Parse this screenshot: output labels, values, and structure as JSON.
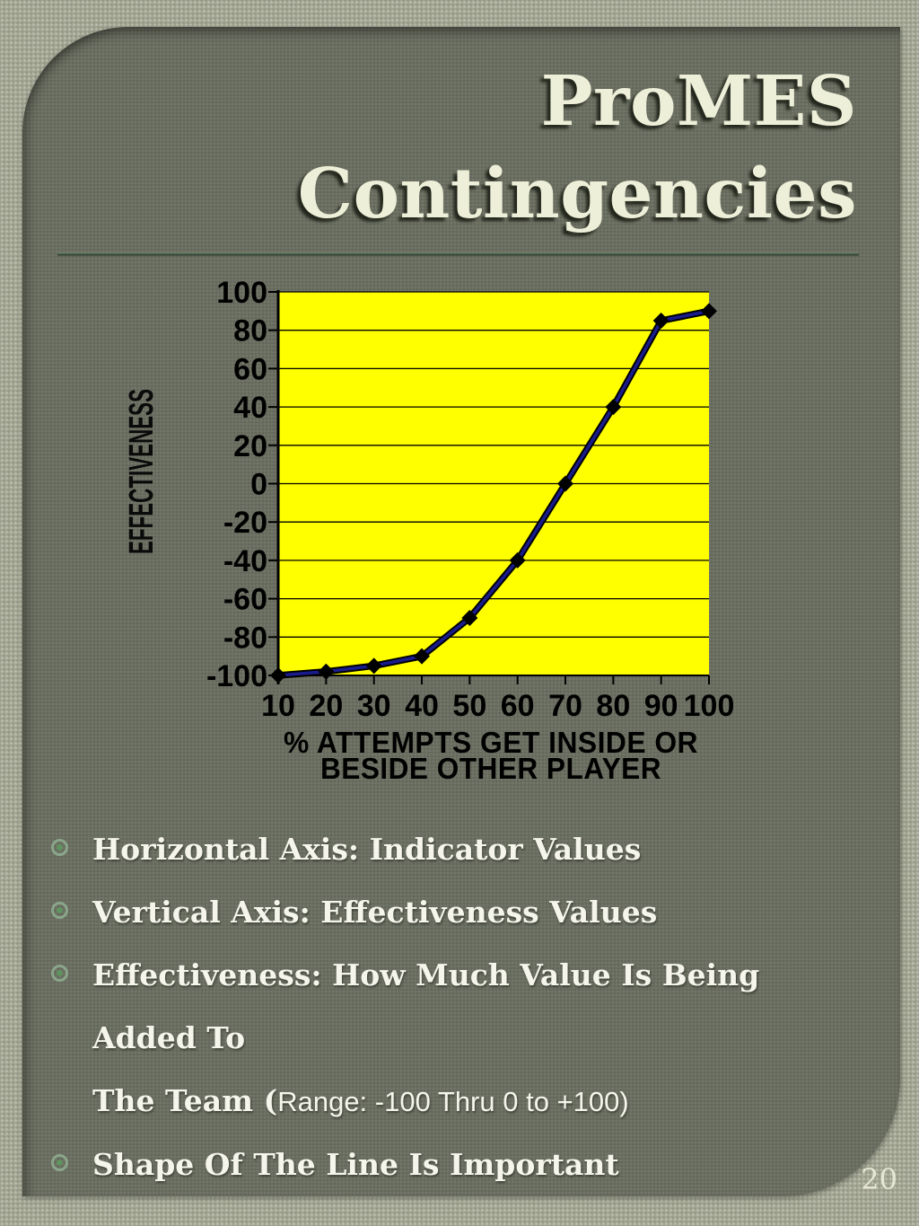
{
  "slide": {
    "title_line1": "ProMES",
    "title_line2": "Contingencies",
    "page_number": "20",
    "colors": {
      "bg_outer": "#a4a694",
      "panel": "#6b6f61",
      "title": "#edefd8",
      "bullet_text": "#f5f5ec",
      "bullet_ring": "#8aa68a",
      "bullet_dot": "#5f935f",
      "page_number": "#e6e8d4"
    },
    "bullets": [
      {
        "text": "Horizontal Axis: Indicator Values"
      },
      {
        "text": "Vertical Axis: Effectiveness Values"
      },
      {
        "line1": "Effectiveness: How Much Value Is Being Added To",
        "line2_bold": "The Team (",
        "line2_light": "Range: -100 Thru 0 to +100)"
      },
      {
        "text": "Shape Of The Line Is Important"
      }
    ]
  },
  "chart_data": {
    "type": "line",
    "x": [
      10,
      20,
      30,
      40,
      50,
      60,
      70,
      80,
      90,
      100
    ],
    "values": [
      -100,
      -98,
      -95,
      -90,
      -70,
      -40,
      0,
      40,
      85,
      90
    ],
    "xlabel": "% ATTEMPTS GET INSIDE OR BESIDE OTHER PLAYER",
    "xlabel_lines": [
      "% ATTEMPTS GET INSIDE OR",
      "BESIDE OTHER PLAYER"
    ],
    "ylabel": "EFFECTIVENESS",
    "ylim": [
      -100,
      100
    ],
    "yticks": [
      100,
      80,
      60,
      40,
      20,
      0,
      -20,
      -40,
      -60,
      -80,
      -100
    ],
    "grid": true,
    "legend": false,
    "plot_bg": "#ffff00",
    "line_color": "#1a1c8e",
    "line_edge_color": "#000000",
    "marker": "diamond",
    "marker_color": "#000000",
    "axis_color": "#000000"
  }
}
